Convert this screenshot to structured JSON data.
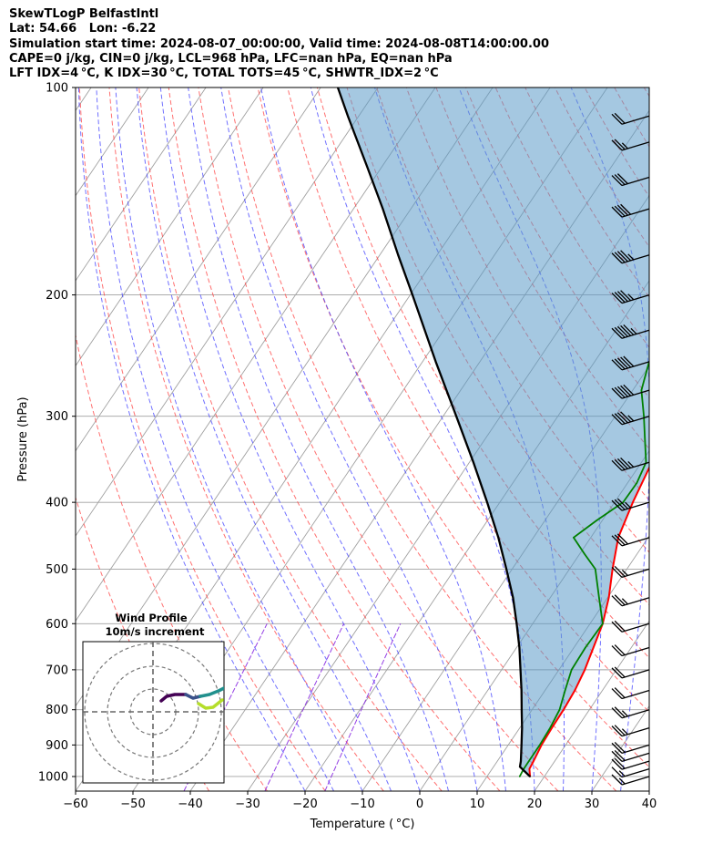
{
  "header": {
    "title": "SkewTLogP BelfastIntl",
    "location": "Lat: 54.66   Lon: -6.22",
    "times": "Simulation start time: 2024-08-07_00:00:00, Valid time: 2024-08-08T14:00:00.00",
    "indices1": "CAPE=0 j/kg, CIN=0 j/kg, LCL=968 hPa, LFC=nan hPa, EQ=nan hPa",
    "indices2": "LFT IDX=4 °C, K IDX=30 °C, TOTAL TOTS=45 °C, SHWTR_IDX=2 °C"
  },
  "chart_data": {
    "type": "line",
    "title": "SkewTLogP BelfastIntl",
    "xlabel": "Temperature ( °C)",
    "ylabel": "Pressure (hPa)",
    "xlim": [
      -60,
      40
    ],
    "ylim": [
      1050,
      100
    ],
    "yscale": "log",
    "xticks": [
      -60,
      -50,
      -40,
      -30,
      -20,
      -10,
      0,
      10,
      20,
      30,
      40
    ],
    "yticks": [
      100,
      200,
      300,
      400,
      500,
      600,
      700,
      800,
      900,
      1000
    ],
    "grid": true,
    "colors": {
      "temperature": "#ff0000",
      "dewpoint": "#008000",
      "parcel": "#000000",
      "shading": "#5b9bc8",
      "dry_adiabats": "#ff4040",
      "moist_adiabats": "#4040ff",
      "mixing_ratio": "#8a2be2",
      "isotherms": "#a0a0a0"
    },
    "series": [
      {
        "key": "temperature",
        "p": [
          1000,
          975,
          950,
          900,
          850,
          800,
          750,
          700,
          650,
          600,
          550,
          500,
          450,
          400,
          350,
          300,
          275,
          250,
          225,
          200,
          175,
          150,
          140,
          130,
          120,
          110,
          100
        ],
        "values": [
          17.5,
          16.5,
          16.3,
          15.8,
          15.6,
          15.5,
          15.2,
          14.5,
          13.4,
          12.2,
          10.2,
          7.5,
          4.8,
          3.2,
          1.8,
          -2.2,
          -4,
          -4.5,
          -3.2,
          -1.3,
          0.8,
          4,
          5.5,
          7.5,
          9.8,
          14,
          18.5
        ]
      },
      {
        "key": "dewpoint",
        "p": [
          1000,
          975,
          950,
          900,
          850,
          800,
          750,
          700,
          650,
          600,
          550,
          500,
          475,
          450,
          425,
          400,
          375,
          350,
          325,
          300,
          275,
          250,
          225,
          200,
          175,
          170,
          150,
          130,
          110,
          100
        ],
        "values": [
          15.7,
          15.5,
          15.5,
          15.5,
          15.3,
          14.8,
          13.5,
          12.2,
          12,
          12.2,
          8.5,
          4.5,
          0.8,
          -3,
          -1,
          1.5,
          1.6,
          0.8,
          -2,
          -5,
          -8.5,
          -10.5,
          -9.5,
          -9.8,
          -15,
          -17,
          -15.5,
          -12.5,
          -10,
          -9.5
        ]
      },
      {
        "key": "parcel",
        "p": [
          1000,
          968,
          950,
          900,
          850,
          800,
          750,
          700,
          650,
          600,
          550,
          500,
          450,
          400,
          350,
          300,
          250,
          200,
          175,
          150,
          130,
          110,
          100
        ],
        "values": [
          17.5,
          14.6,
          14.1,
          12.3,
          10.4,
          8.2,
          5.9,
          3.3,
          0.5,
          -2.8,
          -6.5,
          -11,
          -16.1,
          -22.2,
          -29.3,
          -37.7,
          -47.7,
          -59.6,
          -66.8,
          -74.9,
          -82.7,
          -91.9,
          -97
        ]
      }
    ],
    "wind_barbs": {
      "p": [
        1000,
        975,
        950,
        925,
        900,
        850,
        800,
        750,
        700,
        650,
        600,
        550,
        500,
        450,
        400,
        350,
        300,
        275,
        250,
        225,
        200,
        175,
        150,
        135,
        120,
        110
      ],
      "speed_kt": [
        15,
        15,
        20,
        20,
        20,
        25,
        25,
        20,
        20,
        20,
        20,
        25,
        25,
        30,
        35,
        45,
        45,
        50,
        50,
        55,
        45,
        45,
        40,
        30,
        25,
        20
      ]
    },
    "inset": {
      "title": "Wind Profile",
      "subtitle": "10m/s increment"
    }
  }
}
